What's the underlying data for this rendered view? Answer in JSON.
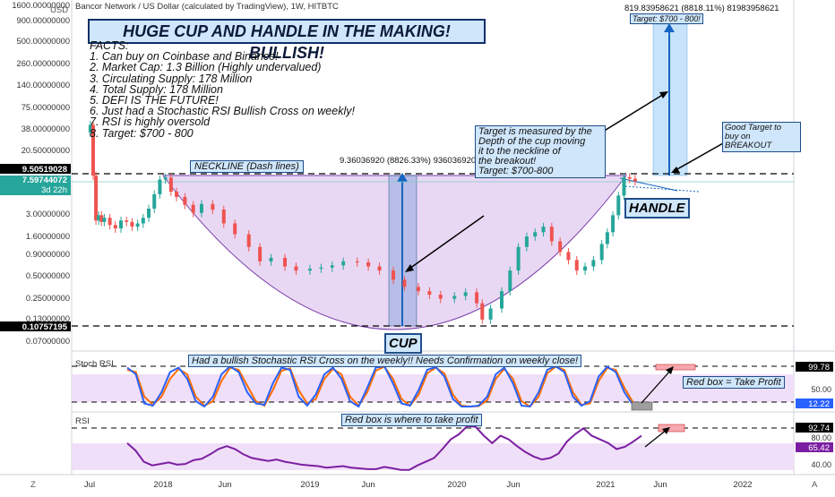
{
  "header": {
    "chart_info": "Bancor Network / US Dollar (calculated by TradingView), 1W, HITBTC",
    "currency": "USD"
  },
  "annotations": {
    "title": "HUGE CUP AND HANDLE IN THE MAKING! BULLISH!",
    "facts_heading": "FACTS:",
    "facts": [
      "1. Can buy on Coinbase and Binance!",
      "2. Market Cap: 1.3 Billion (Highly undervalued)",
      "3. Circulating Supply: 178 Million",
      "4. Total Supply: 178 Million",
      "5. DEFI IS THE FUTURE!",
      "6. Just had a Stochastic RSI Bullish Cross on weekly!",
      "7. RSI is highly oversold",
      "8. Target: $700 - 800"
    ],
    "neckline_label": "NECKLINE (Dash lines)",
    "target_note": [
      "Target is measured by the",
      "Depth of the cup moving",
      "it to the neckline of",
      "the breakout!",
      "Target: $700-800"
    ],
    "good_target": [
      "Good Target to",
      "buy on BREAKOUT"
    ],
    "top_target": "Target: $700 - 800!",
    "top_readout": "819.83958621 (8818.11%) 81983958621",
    "mid_readout": "9.36036920 (8826.33%) 936036920",
    "cup_label": "CUP",
    "handle_label": "HANDLE",
    "stoch_note": "Had a bullish Stochastic RSI Cross on the weekly!! Needs Confirmation on weekly close!",
    "rsi_note": "Red box is where to take profit",
    "redbox_note": "Red box = Take Profit"
  },
  "price_axis": {
    "ticks": [
      "1600.00000000",
      "900.00000000",
      "500.00000000",
      "260.00000000",
      "140.00000000",
      "75.00000000",
      "38.00000000",
      "20.50000000",
      "3.00000000",
      "1.60000000",
      "0.90000000",
      "0.50000000",
      "0.25000000",
      "0.13000000",
      "0.07000000"
    ],
    "neckline_badge": "9.50519028",
    "last_price_badge": "7.59744072",
    "countdown": "3d 22h",
    "low_badge": "0.10757195"
  },
  "stoch_axis": {
    "title": "Stoch RSI",
    "ticks": [
      "50.00"
    ],
    "badge_top": "99.78",
    "badge_bottom": "12.22"
  },
  "rsi_axis": {
    "title": "RSI",
    "ticks": [
      "80.00",
      "40.00"
    ],
    "badge_top": "92.74",
    "badge_bottom": "65.42"
  },
  "time_axis": {
    "labels": [
      "Jul",
      "2018",
      "Jun",
      "2019",
      "Jun",
      "2020",
      "Jun",
      "2021",
      "Jun",
      "2022"
    ]
  },
  "corner": {
    "left": "Z",
    "right": "A"
  },
  "colors": {
    "up": "#26a69a",
    "down": "#ef5350",
    "cup_fill": "#e7d4f3",
    "cup_line": "#7b3fa8",
    "note_bg": "#cfe6fb",
    "note_border": "#1f4e8a",
    "arrow": "#1565c0",
    "stoch_k": "#2962ff",
    "stoch_d": "#ff6d00",
    "rsi_line": "#7b1fa2",
    "band_fill": "#eedcf7",
    "target_box": "#f7a8b0"
  },
  "chart_data": [
    {
      "type": "candlestick",
      "title": "Bancor Network / US Dollar (calculated by TradingView), 1W, HITBTC",
      "scale": "log",
      "ylim": [
        0.07,
        1600
      ],
      "neckline": 9.50519028,
      "last_price": 7.59744072,
      "cup_low": 0.10757195,
      "x": [
        "2017-07-03",
        "2017-07-10",
        "2017-07-17",
        "2017-07-24",
        "2017-07-31",
        "2017-08-07",
        "2017-08-21",
        "2017-09-04",
        "2017-09-18",
        "2017-10-02",
        "2017-10-16",
        "2017-10-30",
        "2017-11-13",
        "2017-11-27",
        "2017-12-11",
        "2017-12-25",
        "2018-01-08",
        "2018-01-22",
        "2018-02-05",
        "2018-02-26",
        "2018-03-19",
        "2018-04-09",
        "2018-05-07",
        "2018-06-04",
        "2018-07-02",
        "2018-08-06",
        "2018-09-03",
        "2018-10-01",
        "2018-11-05",
        "2018-12-03",
        "2019-01-07",
        "2019-02-04",
        "2019-03-04",
        "2019-04-01",
        "2019-05-06",
        "2019-06-03",
        "2019-07-01",
        "2019-08-05",
        "2019-09-02",
        "2019-10-07",
        "2019-11-04",
        "2019-12-02",
        "2020-01-06",
        "2020-02-03",
        "2020-03-02",
        "2020-03-16",
        "2020-04-06",
        "2020-05-04",
        "2020-05-25",
        "2020-06-15",
        "2020-07-06",
        "2020-07-27",
        "2020-08-17",
        "2020-09-07",
        "2020-09-28",
        "2020-10-19",
        "2020-11-09",
        "2020-11-30",
        "2020-12-21",
        "2021-01-11",
        "2021-01-25",
        "2021-02-08",
        "2021-02-22",
        "2021-03-08",
        "2021-03-22",
        "2021-04-05"
      ],
      "values": [
        40,
        9,
        2.4,
        2.8,
        2.3,
        2.6,
        2.1,
        1.9,
        2.4,
        2.3,
        2.0,
        2.2,
        2.6,
        3.4,
        5.2,
        8.0,
        8.5,
        5.6,
        4.8,
        3.8,
        3.0,
        3.9,
        3.3,
        2.2,
        1.6,
        1.1,
        0.72,
        0.8,
        0.62,
        0.55,
        0.58,
        0.6,
        0.64,
        0.72,
        0.7,
        0.62,
        0.55,
        0.42,
        0.34,
        0.3,
        0.27,
        0.24,
        0.26,
        0.29,
        0.21,
        0.13,
        0.18,
        0.3,
        0.55,
        1.1,
        1.5,
        1.7,
        2.0,
        1.3,
        0.95,
        0.75,
        0.55,
        0.62,
        0.75,
        1.2,
        1.7,
        2.8,
        5.0,
        8.6,
        8.2,
        7.6
      ]
    },
    {
      "type": "line",
      "title": "Stoch RSI",
      "ylim": [
        0,
        100
      ],
      "series": [
        {
          "name": "%K",
          "values": [
            95,
            80,
            15,
            10,
            40,
            85,
            95,
            70,
            20,
            8,
            30,
            80,
            98,
            85,
            40,
            15,
            12,
            60,
            95,
            90,
            30,
            10,
            35,
            80,
            95,
            70,
            20,
            8,
            50,
            95,
            98,
            60,
            15,
            10,
            45,
            90,
            96,
            75,
            25,
            8,
            8,
            10,
            30,
            80,
            95,
            60,
            10,
            8,
            40,
            90,
            98,
            85,
            30,
            10,
            20,
            75,
            97,
            85,
            40,
            12,
            12
          ]
        },
        {
          "name": "%D",
          "values": [
            90,
            85,
            30,
            12,
            30,
            70,
            92,
            80,
            30,
            10,
            20,
            65,
            95,
            90,
            55,
            20,
            10,
            45,
            88,
            93,
            45,
            15,
            25,
            70,
            92,
            80,
            30,
            10,
            40,
            88,
            97,
            70,
            25,
            10,
            35,
            82,
            95,
            82,
            35,
            10,
            8,
            9,
            22,
            70,
            92,
            70,
            20,
            8,
            30,
            82,
            97,
            90,
            40,
            12,
            15,
            65,
            94,
            90,
            50,
            18,
            10
          ]
        }
      ]
    },
    {
      "type": "line",
      "title": "RSI",
      "ylim": [
        30,
        100
      ],
      "series": [
        {
          "name": "RSI",
          "values": [
            70,
            60,
            45,
            40,
            42,
            44,
            41,
            42,
            47,
            49,
            55,
            62,
            66,
            62,
            55,
            50,
            48,
            46,
            48,
            45,
            43,
            41,
            40,
            39,
            37,
            38,
            39,
            37,
            36,
            35,
            35,
            38,
            36,
            34,
            34,
            40,
            45,
            50,
            62,
            75,
            82,
            93,
            92,
            80,
            70,
            80,
            75,
            66,
            58,
            52,
            48,
            50,
            56,
            72,
            82,
            90,
            80,
            75,
            70,
            62,
            65,
            72,
            80
          ]
        }
      ]
    }
  ]
}
